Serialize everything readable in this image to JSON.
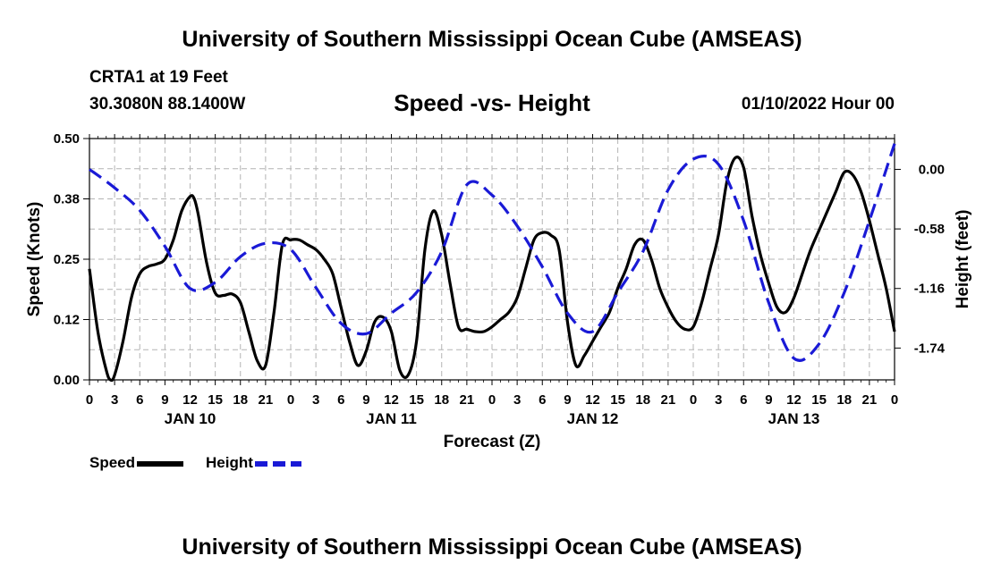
{
  "header": {
    "title": "University of Southern Mississippi Ocean Cube (AMSEAS)",
    "station": "CRTA1 at 19 Feet",
    "coords": "30.3080N  88.1400W",
    "subtitle": "Speed -vs- Height",
    "run_time": "01/10/2022 Hour 00"
  },
  "footer": {
    "title": "University of Southern Mississippi Ocean Cube (AMSEAS)"
  },
  "legend": {
    "speed_label": "Speed",
    "height_label": "Height"
  },
  "colors": {
    "speed": "#000000",
    "height": "#1a1ad6",
    "grid": "#b4b4b4"
  },
  "chart_data": {
    "type": "line",
    "title": "Speed -vs- Height",
    "xlabel": "Forecast (Z)",
    "ylabel": "Speed (Knots)",
    "y2label": "Height (feet)",
    "xlim": [
      0,
      96
    ],
    "ylim": [
      0,
      0.5
    ],
    "y2lim": [
      -2.05,
      0.3
    ],
    "grid": true,
    "x_tick_step": 3,
    "x_tick_labels": [
      "0",
      "3",
      "6",
      "9",
      "12",
      "15",
      "18",
      "21",
      "0",
      "3",
      "6",
      "9",
      "12",
      "15",
      "18",
      "21",
      "0",
      "3",
      "6",
      "9",
      "12",
      "15",
      "18",
      "21",
      "0",
      "3",
      "6",
      "9",
      "12",
      "15",
      "18",
      "21",
      "0"
    ],
    "y_ticks": [
      "0.00",
      "0.12",
      "0.25",
      "0.38",
      "0.50"
    ],
    "y_tick_values": [
      0,
      0.125,
      0.25,
      0.375,
      0.5
    ],
    "y2_ticks": [
      "0.00",
      "-0.58",
      "-1.16",
      "-1.74"
    ],
    "y2_tick_values": [
      0,
      -0.58,
      -1.16,
      -1.74
    ],
    "day_labels": [
      {
        "label": "JAN 10",
        "x": 12
      },
      {
        "label": "JAN 11",
        "x": 36
      },
      {
        "label": "JAN 12",
        "x": 60
      },
      {
        "label": "JAN 13",
        "x": 84
      }
    ],
    "series": [
      {
        "name": "Speed",
        "axis": "left",
        "style": "solid",
        "x": [
          0,
          1,
          2,
          2.5,
          3,
          4,
          5,
          6,
          7,
          8,
          9,
          10,
          11,
          12,
          12.5,
          13,
          14,
          15,
          16,
          17,
          18,
          19,
          20,
          21,
          22,
          23,
          24,
          25,
          26,
          27,
          28,
          29,
          30,
          31,
          32,
          33,
          34,
          35,
          36,
          37,
          38,
          39,
          40,
          41,
          42,
          43,
          44,
          45,
          46,
          47,
          48,
          49,
          50,
          51,
          52,
          53,
          54,
          55,
          56,
          57,
          58,
          59,
          60,
          61,
          62,
          63,
          64,
          65,
          66,
          67,
          68,
          69,
          70,
          71,
          72,
          73,
          74,
          75,
          76,
          77,
          78,
          79,
          80,
          81,
          82,
          83,
          84,
          85,
          86,
          87,
          88,
          89,
          90,
          91,
          92,
          93,
          94,
          95,
          96
        ],
        "values": [
          0.23,
          0.1,
          0.02,
          0.0,
          0.01,
          0.08,
          0.17,
          0.22,
          0.235,
          0.24,
          0.25,
          0.29,
          0.35,
          0.38,
          0.375,
          0.34,
          0.24,
          0.18,
          0.175,
          0.178,
          0.16,
          0.1,
          0.04,
          0.03,
          0.14,
          0.28,
          0.29,
          0.29,
          0.28,
          0.27,
          0.25,
          0.22,
          0.15,
          0.08,
          0.03,
          0.06,
          0.12,
          0.13,
          0.1,
          0.02,
          0.01,
          0.08,
          0.27,
          0.35,
          0.3,
          0.2,
          0.11,
          0.105,
          0.1,
          0.1,
          0.11,
          0.125,
          0.14,
          0.17,
          0.23,
          0.29,
          0.305,
          0.3,
          0.27,
          0.12,
          0.03,
          0.05,
          0.08,
          0.11,
          0.14,
          0.19,
          0.23,
          0.28,
          0.29,
          0.25,
          0.19,
          0.15,
          0.12,
          0.105,
          0.11,
          0.16,
          0.23,
          0.3,
          0.41,
          0.46,
          0.44,
          0.34,
          0.26,
          0.2,
          0.15,
          0.14,
          0.17,
          0.22,
          0.27,
          0.31,
          0.35,
          0.39,
          0.43,
          0.425,
          0.39,
          0.33,
          0.26,
          0.19,
          0.1
        ]
      },
      {
        "name": "Height",
        "axis": "right",
        "style": "dashed",
        "x": [
          0,
          3,
          6,
          9,
          12,
          15,
          18,
          21,
          24,
          27,
          30,
          33,
          36,
          39,
          42,
          45,
          48,
          51,
          54,
          57,
          60,
          63,
          66,
          69,
          72,
          75,
          78,
          81,
          84,
          87,
          90,
          93,
          96
        ],
        "values": [
          0.0,
          -0.18,
          -0.4,
          -0.75,
          -1.16,
          -1.1,
          -0.85,
          -0.72,
          -0.78,
          -1.15,
          -1.5,
          -1.6,
          -1.4,
          -1.2,
          -0.8,
          -0.15,
          -0.25,
          -0.55,
          -0.95,
          -1.4,
          -1.58,
          -1.2,
          -0.8,
          -0.2,
          0.1,
          0.05,
          -0.5,
          -1.3,
          -1.84,
          -1.7,
          -1.2,
          -0.5,
          0.25
        ]
      }
    ]
  }
}
